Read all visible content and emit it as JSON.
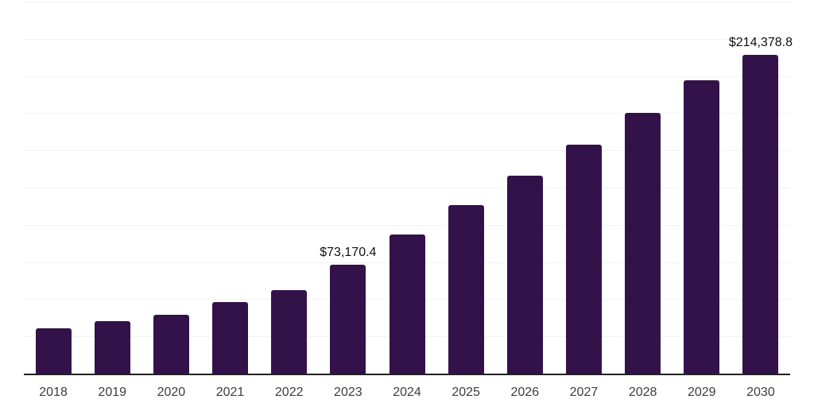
{
  "chart_data": {
    "type": "bar",
    "title": "",
    "xlabel": "",
    "ylabel": "",
    "categories": [
      "2018",
      "2019",
      "2020",
      "2021",
      "2022",
      "2023",
      "2024",
      "2025",
      "2026",
      "2027",
      "2028",
      "2029",
      "2030"
    ],
    "values": [
      30200,
      35500,
      39600,
      48100,
      56100,
      73170.4,
      93500,
      113300,
      133000,
      153900,
      175200,
      197100,
      214378.8
    ],
    "value_labels": [
      "",
      "",
      "",
      "",
      "",
      "$73,170.4",
      "",
      "",
      "",
      "",
      "",
      "",
      "$214,378.8"
    ],
    "ylim": [
      0,
      250000
    ],
    "gridline_step": 25000,
    "grid": true,
    "legend": false,
    "y_tick_labels_shown": false,
    "colors": {
      "bar": "#33124a",
      "gridline": "#f2f2f3",
      "axis_line": "#222222",
      "tick_label": "#3d3d3d",
      "value_label": "#0f0f0f",
      "background": "#ffffff"
    }
  }
}
